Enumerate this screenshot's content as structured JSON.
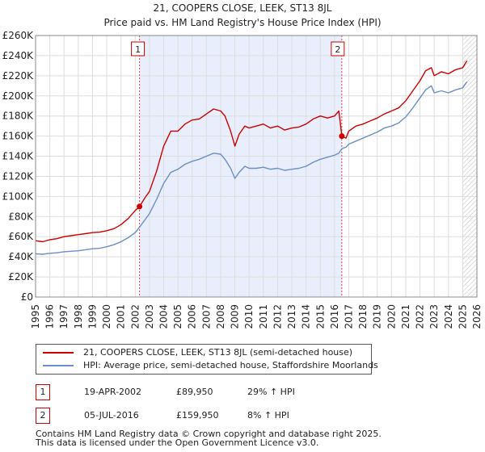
{
  "chart_data": {
    "type": "line",
    "title": "21, COOPERS CLOSE, LEEK, ST13 8JL",
    "subtitle": "Price paid vs. HM Land Registry's House Price Index (HPI)",
    "xlim": [
      1995,
      2026
    ],
    "ylim": [
      0,
      260000
    ],
    "x_ticks": [
      "1995",
      "1996",
      "1997",
      "1998",
      "1999",
      "2000",
      "2001",
      "2002",
      "2003",
      "2004",
      "2005",
      "2006",
      "2007",
      "2008",
      "2009",
      "2010",
      "2011",
      "2012",
      "2013",
      "2014",
      "2015",
      "2016",
      "2017",
      "2018",
      "2019",
      "2020",
      "2021",
      "2022",
      "2023",
      "2024",
      "2025",
      "2026"
    ],
    "y_ticks": [
      {
        "value": 0,
        "label": "£0"
      },
      {
        "value": 20000,
        "label": "£20K"
      },
      {
        "value": 40000,
        "label": "£40K"
      },
      {
        "value": 60000,
        "label": "£60K"
      },
      {
        "value": 80000,
        "label": "£80K"
      },
      {
        "value": 100000,
        "label": "£100K"
      },
      {
        "value": 120000,
        "label": "£120K"
      },
      {
        "value": 140000,
        "label": "£140K"
      },
      {
        "value": 160000,
        "label": "£160K"
      },
      {
        "value": 180000,
        "label": "£180K"
      },
      {
        "value": 200000,
        "label": "£200K"
      },
      {
        "value": 220000,
        "label": "£220K"
      },
      {
        "value": 240000,
        "label": "£240K"
      },
      {
        "value": 260000,
        "label": "£260K"
      }
    ],
    "grid": true,
    "shaded_period": [
      2002.3,
      2016.51
    ],
    "future_hatch_from": 2025.0,
    "series": [
      {
        "name": "21, COOPERS CLOSE, LEEK, ST13 8JL (semi-detached house)",
        "color": "#cc0000",
        "x": [
          1995.0,
          1995.5,
          1996.0,
          1996.5,
          1997.0,
          1997.5,
          1998.0,
          1998.5,
          1999.0,
          1999.5,
          2000.0,
          2000.5,
          2001.0,
          2001.5,
          2002.0,
          2002.3,
          2002.7,
          2003.0,
          2003.5,
          2004.0,
          2004.5,
          2005.0,
          2005.5,
          2006.0,
          2006.5,
          2007.0,
          2007.5,
          2008.0,
          2008.3,
          2008.7,
          2009.0,
          2009.3,
          2009.7,
          2010.0,
          2010.5,
          2011.0,
          2011.5,
          2012.0,
          2012.5,
          2013.0,
          2013.5,
          2014.0,
          2014.5,
          2015.0,
          2015.5,
          2016.0,
          2016.3,
          2016.51,
          2016.8,
          2017.0,
          2017.5,
          2018.0,
          2018.5,
          2019.0,
          2019.5,
          2020.0,
          2020.5,
          2021.0,
          2021.5,
          2022.0,
          2022.4,
          2022.8,
          2023.0,
          2023.5,
          2024.0,
          2024.5,
          2025.0,
          2025.3
        ],
        "values": [
          56000,
          55000,
          57000,
          58000,
          60000,
          61000,
          62000,
          63000,
          64000,
          64500,
          66000,
          68000,
          72000,
          78000,
          86000,
          89950,
          99000,
          105000,
          125000,
          150000,
          165000,
          165000,
          172000,
          176000,
          177000,
          182000,
          187000,
          185000,
          180000,
          165000,
          150000,
          162000,
          170000,
          168000,
          170000,
          172000,
          168000,
          170000,
          166000,
          168000,
          169000,
          172000,
          177000,
          180000,
          178000,
          180000,
          185000,
          159950,
          158000,
          165000,
          170000,
          172000,
          175000,
          178000,
          182000,
          185000,
          188000,
          195000,
          205000,
          215000,
          225000,
          228000,
          220000,
          224000,
          222000,
          226000,
          228000,
          235000
        ]
      },
      {
        "name": "HPI: Average price, semi-detached house, Staffordshire Moorlands",
        "color": "#6a8fc4",
        "x": [
          1995.0,
          1995.5,
          1996.0,
          1996.5,
          1997.0,
          1997.5,
          1998.0,
          1998.5,
          1999.0,
          1999.5,
          2000.0,
          2000.5,
          2001.0,
          2001.5,
          2002.0,
          2002.3,
          2002.7,
          2003.0,
          2003.5,
          2004.0,
          2004.5,
          2005.0,
          2005.5,
          2006.0,
          2006.5,
          2007.0,
          2007.5,
          2008.0,
          2008.3,
          2008.7,
          2009.0,
          2009.3,
          2009.7,
          2010.0,
          2010.5,
          2011.0,
          2011.5,
          2012.0,
          2012.5,
          2013.0,
          2013.5,
          2014.0,
          2014.5,
          2015.0,
          2015.5,
          2016.0,
          2016.3,
          2016.51,
          2016.8,
          2017.0,
          2017.5,
          2018.0,
          2018.5,
          2019.0,
          2019.5,
          2020.0,
          2020.5,
          2021.0,
          2021.5,
          2022.0,
          2022.4,
          2022.8,
          2023.0,
          2023.5,
          2024.0,
          2024.5,
          2025.0,
          2025.3
        ],
        "values": [
          43000,
          42500,
          43500,
          44000,
          45000,
          45500,
          46000,
          47000,
          48000,
          48500,
          50000,
          52000,
          55000,
          59000,
          64000,
          69500,
          77000,
          83000,
          97000,
          113000,
          124000,
          127000,
          132000,
          135000,
          137000,
          140000,
          143000,
          142000,
          137000,
          128000,
          118000,
          124000,
          130000,
          128000,
          128000,
          129000,
          127000,
          128000,
          126000,
          127000,
          128000,
          130000,
          134000,
          137000,
          139000,
          141000,
          143000,
          147500,
          149000,
          152000,
          155000,
          158000,
          161000,
          164000,
          168000,
          170000,
          173000,
          179000,
          188000,
          198000,
          206000,
          210000,
          203000,
          205000,
          203000,
          206000,
          208000,
          214000
        ]
      }
    ],
    "annotations": [
      {
        "label": "1",
        "x": 2002.3,
        "y": 89950
      },
      {
        "label": "2",
        "x": 2016.51,
        "y": 159950
      }
    ]
  },
  "legend": {
    "property_label": "21, COOPERS CLOSE, LEEK, ST13 8JL (semi-detached house)",
    "hpi_label": "HPI: Average price, semi-detached house, Staffordshire Moorlands",
    "property_color": "#cc0000",
    "hpi_color": "#6a8fc4"
  },
  "sales": [
    {
      "num": "1",
      "date": "19-APR-2002",
      "price": "£89,950",
      "hpi": "29% ↑ HPI"
    },
    {
      "num": "2",
      "date": "05-JUL-2016",
      "price": "£159,950",
      "hpi": "8% ↑ HPI"
    }
  ],
  "footer": {
    "line1": "Contains HM Land Registry data © Crown copyright and database right 2025.",
    "line2": "This data is licensed under the Open Government Licence v3.0."
  }
}
